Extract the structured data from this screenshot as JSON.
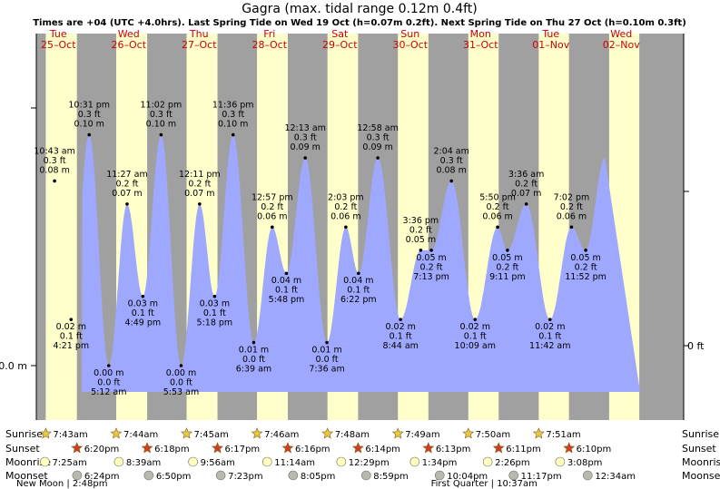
{
  "title": "Gagra (max. tidal range 0.12m 0.4ft)",
  "subtitle": "Times are +04 (UTC +4.0hrs). Last Spring Tide on Wed 19 Oct (h=0.07m 0.2ft). Next Spring Tide on Thu 27 Oct (h=0.10m 0.3ft)",
  "chart_data": {
    "type": "area",
    "days": [
      {
        "dow": "Tue",
        "date": "25–Oct"
      },
      {
        "dow": "Wed",
        "date": "26–Oct"
      },
      {
        "dow": "Thu",
        "date": "27–Oct"
      },
      {
        "dow": "Fri",
        "date": "28–Oct"
      },
      {
        "dow": "Sat",
        "date": "29–Oct"
      },
      {
        "dow": "Sun",
        "date": "30–Oct"
      },
      {
        "dow": "Mon",
        "date": "31–Oct"
      },
      {
        "dow": "Tue",
        "date": "01–Nov"
      },
      {
        "dow": "Wed",
        "date": "02–Nov"
      }
    ],
    "tides": [
      {
        "day": 0,
        "time_h": 10.72,
        "h": 0.08,
        "type": "high",
        "time": "10:43 am",
        "ft": "0.3 ft",
        "m": "0.08 m"
      },
      {
        "day": 0,
        "time_h": 16.35,
        "h": 0.02,
        "type": "low",
        "time": "4:21 pm",
        "ft": "0.1 ft",
        "m": "0.02 m"
      },
      {
        "day": 0,
        "time_h": 22.52,
        "h": 0.1,
        "type": "high",
        "time": "10:31 pm",
        "ft": "0.3 ft",
        "m": "0.10 m"
      },
      {
        "day": 1,
        "time_h": 5.2,
        "h": 0.0,
        "type": "low",
        "time": "5:12 am",
        "ft": "0.0 ft",
        "m": "0.00 m"
      },
      {
        "day": 1,
        "time_h": 11.45,
        "h": 0.07,
        "type": "high",
        "time": "11:27 am",
        "ft": "0.2 ft",
        "m": "0.07 m"
      },
      {
        "day": 1,
        "time_h": 16.82,
        "h": 0.03,
        "type": "low",
        "time": "4:49 pm",
        "ft": "0.1 ft",
        "m": "0.03 m"
      },
      {
        "day": 1,
        "time_h": 23.03,
        "h": 0.1,
        "type": "high",
        "time": "11:02 pm",
        "ft": "0.3 ft",
        "m": "0.10 m"
      },
      {
        "day": 2,
        "time_h": 5.88,
        "h": 0.0,
        "type": "low",
        "time": "5:53 am",
        "ft": "0.0 ft",
        "m": "0.00 m"
      },
      {
        "day": 2,
        "time_h": 12.18,
        "h": 0.07,
        "type": "high",
        "time": "12:11 pm",
        "ft": "0.2 ft",
        "m": "0.07 m"
      },
      {
        "day": 2,
        "time_h": 17.3,
        "h": 0.03,
        "type": "low",
        "time": "5:18 pm",
        "ft": "0.1 ft",
        "m": "0.03 m"
      },
      {
        "day": 2,
        "time_h": 23.6,
        "h": 0.1,
        "type": "high",
        "time": "11:36 pm",
        "ft": "0.3 ft",
        "m": "0.10 m"
      },
      {
        "day": 3,
        "time_h": 6.65,
        "h": 0.01,
        "type": "low",
        "time": "6:39 am",
        "ft": "0.0 ft",
        "m": "0.01 m"
      },
      {
        "day": 3,
        "time_h": 12.95,
        "h": 0.06,
        "type": "high",
        "time": "12:57 pm",
        "ft": "0.2 ft",
        "m": "0.06 m"
      },
      {
        "day": 3,
        "time_h": 17.8,
        "h": 0.04,
        "type": "low",
        "time": "5:48 pm",
        "ft": "0.1 ft",
        "m": "0.04 m"
      },
      {
        "day": 4,
        "time_h": 0.22,
        "h": 0.09,
        "type": "high",
        "time": "12:13 am",
        "ft": "0.3 ft",
        "m": "0.09 m"
      },
      {
        "day": 4,
        "time_h": 7.6,
        "h": 0.01,
        "type": "low",
        "time": "7:36 am",
        "ft": "0.0 ft",
        "m": "0.01 m"
      },
      {
        "day": 4,
        "time_h": 14.05,
        "h": 0.06,
        "type": "high",
        "time": "2:03 pm",
        "ft": "0.2 ft",
        "m": "0.06 m"
      },
      {
        "day": 4,
        "time_h": 18.37,
        "h": 0.04,
        "type": "low",
        "time": "6:22 pm",
        "ft": "0.1 ft",
        "m": "0.04 m"
      },
      {
        "day": 5,
        "time_h": 0.97,
        "h": 0.09,
        "type": "high",
        "time": "12:58 am",
        "ft": "0.3 ft",
        "m": "0.09 m"
      },
      {
        "day": 5,
        "time_h": 8.73,
        "h": 0.02,
        "type": "low",
        "time": "8:44 am",
        "ft": "0.1 ft",
        "m": "0.02 m"
      },
      {
        "day": 5,
        "time_h": 15.6,
        "h": 0.05,
        "type": "high",
        "time": "3:36 pm",
        "ft": "0.2 ft",
        "m": "0.05 m"
      },
      {
        "day": 5,
        "time_h": 19.22,
        "h": 0.05,
        "type": "low",
        "time": "7:13 pm",
        "ft": "0.2 ft",
        "m": "0.05 m"
      },
      {
        "day": 6,
        "time_h": 2.07,
        "h": 0.08,
        "type": "high",
        "time": "2:04 am",
        "ft": "0.3 ft",
        "m": "0.08 m"
      },
      {
        "day": 6,
        "time_h": 10.15,
        "h": 0.02,
        "type": "low",
        "time": "10:09 am",
        "ft": "0.1 ft",
        "m": "0.02 m"
      },
      {
        "day": 6,
        "time_h": 17.83,
        "h": 0.06,
        "type": "high",
        "time": "5:50 pm",
        "ft": "0.2 ft",
        "m": "0.06 m"
      },
      {
        "day": 6,
        "time_h": 21.18,
        "h": 0.05,
        "type": "low",
        "time": "9:11 pm",
        "ft": "0.2 ft",
        "m": "0.05 m"
      },
      {
        "day": 7,
        "time_h": 3.6,
        "h": 0.07,
        "type": "high",
        "time": "3:36 am",
        "ft": "0.2 ft",
        "m": "0.07 m"
      },
      {
        "day": 7,
        "time_h": 11.7,
        "h": 0.02,
        "type": "low",
        "time": "11:42 am",
        "ft": "0.1 ft",
        "m": "0.02 m"
      },
      {
        "day": 7,
        "time_h": 19.03,
        "h": 0.06,
        "type": "high",
        "time": "7:02 pm",
        "ft": "0.2 ft",
        "m": "0.06 m"
      },
      {
        "day": 7,
        "time_h": 23.87,
        "h": 0.05,
        "type": "low",
        "time": "11:52 pm",
        "ft": "0.2 ft",
        "m": "0.05 m"
      }
    ],
    "y_axis_left_label": "0.0 m",
    "y_axis_right_label": "0 ft",
    "ylim_m": [
      -0.01,
      0.125
    ],
    "sunrise": [
      "7:43am",
      "7:44am",
      "7:45am",
      "7:46am",
      "7:48am",
      "7:49am",
      "7:50am",
      "7:51am"
    ],
    "sunset": [
      "6:20pm",
      "6:18pm",
      "6:17pm",
      "6:16pm",
      "6:14pm",
      "6:13pm",
      "6:11pm",
      "6:10pm"
    ],
    "moonrise": [
      "7:25am",
      "8:39am",
      "9:56am",
      "11:14am",
      "12:29pm",
      "1:34pm",
      "2:26pm",
      "3:08pm"
    ],
    "moonset": [
      "6:24pm",
      "6:50pm",
      "7:23pm",
      "8:05pm",
      "8:59pm",
      "10:04pm",
      "11:17pm",
      "12:34am"
    ],
    "moon_phases": [
      {
        "text": "New Moon | 2:48pm",
        "day": 0
      },
      {
        "text": "First Quarter | 10:37am",
        "day": 6
      }
    ]
  },
  "row_labels": [
    "Sunrise",
    "Sunset",
    "Moonrise",
    "Moonset"
  ],
  "colors": {
    "night": "#a0a0a0",
    "day": "#ffffcc",
    "water": "#9fa8ff",
    "day_text": "#cc0000",
    "sun_star": "#e8c840",
    "set_star": "#d04020",
    "moonrise": "#ffffc0",
    "moonset": "#b8b8b0"
  }
}
